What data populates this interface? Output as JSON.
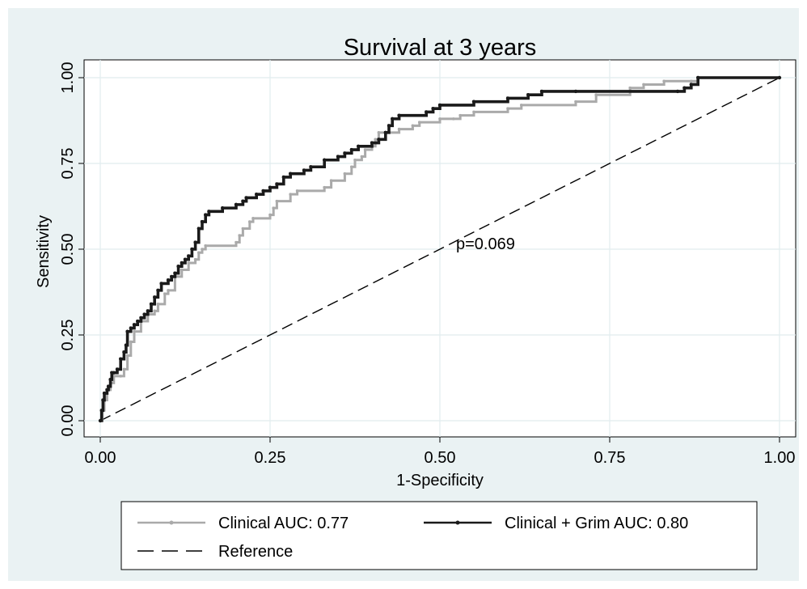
{
  "chart_data": {
    "type": "line",
    "title": "Survival at 3 years",
    "xlabel": "1-Specificity",
    "ylabel": "Sensitivity",
    "xlim": [
      0,
      1
    ],
    "ylim": [
      0,
      1
    ],
    "x_ticks": [
      "0.00",
      "0.25",
      "0.50",
      "0.75",
      "1.00"
    ],
    "y_ticks": [
      "0.00",
      "0.25",
      "0.50",
      "0.75",
      "1.00"
    ],
    "grid": true,
    "annotation": {
      "text": "p=0.069",
      "x": 0.5,
      "y": 0.49
    },
    "legend_position": "bottom",
    "colors": {
      "background": "#eaf2f3",
      "plot": "#ffffff",
      "grid": "#e1ecee",
      "clinical": "#aaaaaa",
      "grim": "#1a1a1a",
      "reference": "#000000"
    },
    "series": [
      {
        "name": "Clinical AUC: 0.77",
        "color": "#aaaaaa",
        "points": [
          [
            0,
            0
          ],
          [
            0.003,
            0.03
          ],
          [
            0.006,
            0.06
          ],
          [
            0.01,
            0.09
          ],
          [
            0.015,
            0.11
          ],
          [
            0.02,
            0.13
          ],
          [
            0.03,
            0.13
          ],
          [
            0.035,
            0.15
          ],
          [
            0.04,
            0.19
          ],
          [
            0.045,
            0.23
          ],
          [
            0.05,
            0.26
          ],
          [
            0.06,
            0.29
          ],
          [
            0.07,
            0.31
          ],
          [
            0.08,
            0.32
          ],
          [
            0.085,
            0.34
          ],
          [
            0.095,
            0.37
          ],
          [
            0.1,
            0.38
          ],
          [
            0.11,
            0.42
          ],
          [
            0.12,
            0.44
          ],
          [
            0.13,
            0.46
          ],
          [
            0.14,
            0.47
          ],
          [
            0.145,
            0.49
          ],
          [
            0.15,
            0.5
          ],
          [
            0.155,
            0.51
          ],
          [
            0.2,
            0.52
          ],
          [
            0.205,
            0.54
          ],
          [
            0.21,
            0.56
          ],
          [
            0.22,
            0.58
          ],
          [
            0.225,
            0.59
          ],
          [
            0.25,
            0.6
          ],
          [
            0.255,
            0.62
          ],
          [
            0.26,
            0.64
          ],
          [
            0.28,
            0.66
          ],
          [
            0.29,
            0.67
          ],
          [
            0.33,
            0.68
          ],
          [
            0.34,
            0.7
          ],
          [
            0.36,
            0.72
          ],
          [
            0.37,
            0.74
          ],
          [
            0.375,
            0.76
          ],
          [
            0.385,
            0.77
          ],
          [
            0.39,
            0.79
          ],
          [
            0.4,
            0.8
          ],
          [
            0.405,
            0.82
          ],
          [
            0.41,
            0.84
          ],
          [
            0.44,
            0.85
          ],
          [
            0.46,
            0.86
          ],
          [
            0.47,
            0.87
          ],
          [
            0.5,
            0.88
          ],
          [
            0.52,
            0.88
          ],
          [
            0.53,
            0.89
          ],
          [
            0.55,
            0.9
          ],
          [
            0.6,
            0.91
          ],
          [
            0.62,
            0.92
          ],
          [
            0.7,
            0.93
          ],
          [
            0.73,
            0.95
          ],
          [
            0.78,
            0.97
          ],
          [
            0.8,
            0.98
          ],
          [
            0.83,
            0.99
          ],
          [
            0.87,
            0.99
          ],
          [
            0.88,
            1.0
          ],
          [
            1.0,
            1.0
          ]
        ]
      },
      {
        "name": "Clinical + Grim AUC: 0.80",
        "color": "#1a1a1a",
        "points": [
          [
            0,
            0
          ],
          [
            0.002,
            0.03
          ],
          [
            0.004,
            0.06
          ],
          [
            0.006,
            0.08
          ],
          [
            0.01,
            0.09
          ],
          [
            0.012,
            0.1
          ],
          [
            0.015,
            0.12
          ],
          [
            0.017,
            0.14
          ],
          [
            0.02,
            0.14
          ],
          [
            0.025,
            0.15
          ],
          [
            0.03,
            0.18
          ],
          [
            0.035,
            0.2
          ],
          [
            0.038,
            0.22
          ],
          [
            0.04,
            0.26
          ],
          [
            0.045,
            0.27
          ],
          [
            0.05,
            0.28
          ],
          [
            0.055,
            0.29
          ],
          [
            0.06,
            0.3
          ],
          [
            0.065,
            0.31
          ],
          [
            0.07,
            0.32
          ],
          [
            0.075,
            0.34
          ],
          [
            0.08,
            0.36
          ],
          [
            0.085,
            0.38
          ],
          [
            0.09,
            0.4
          ],
          [
            0.1,
            0.41
          ],
          [
            0.105,
            0.42
          ],
          [
            0.11,
            0.43
          ],
          [
            0.115,
            0.45
          ],
          [
            0.12,
            0.46
          ],
          [
            0.125,
            0.47
          ],
          [
            0.13,
            0.48
          ],
          [
            0.135,
            0.5
          ],
          [
            0.14,
            0.52
          ],
          [
            0.145,
            0.56
          ],
          [
            0.15,
            0.58
          ],
          [
            0.155,
            0.6
          ],
          [
            0.16,
            0.61
          ],
          [
            0.18,
            0.62
          ],
          [
            0.2,
            0.63
          ],
          [
            0.21,
            0.64
          ],
          [
            0.215,
            0.65
          ],
          [
            0.23,
            0.66
          ],
          [
            0.24,
            0.67
          ],
          [
            0.25,
            0.68
          ],
          [
            0.26,
            0.69
          ],
          [
            0.27,
            0.71
          ],
          [
            0.28,
            0.72
          ],
          [
            0.3,
            0.73
          ],
          [
            0.31,
            0.74
          ],
          [
            0.33,
            0.76
          ],
          [
            0.35,
            0.77
          ],
          [
            0.36,
            0.78
          ],
          [
            0.37,
            0.79
          ],
          [
            0.38,
            0.8
          ],
          [
            0.4,
            0.81
          ],
          [
            0.41,
            0.82
          ],
          [
            0.42,
            0.84
          ],
          [
            0.425,
            0.86
          ],
          [
            0.43,
            0.88
          ],
          [
            0.44,
            0.89
          ],
          [
            0.48,
            0.9
          ],
          [
            0.49,
            0.91
          ],
          [
            0.5,
            0.92
          ],
          [
            0.55,
            0.93
          ],
          [
            0.6,
            0.94
          ],
          [
            0.63,
            0.95
          ],
          [
            0.65,
            0.96
          ],
          [
            0.7,
            0.96
          ],
          [
            0.85,
            0.96
          ],
          [
            0.86,
            0.97
          ],
          [
            0.87,
            0.98
          ],
          [
            0.88,
            1.0
          ],
          [
            1.0,
            1.0
          ]
        ]
      },
      {
        "name": "Reference",
        "color": "#000000",
        "dashed": true,
        "points": [
          [
            0,
            0
          ],
          [
            1,
            1
          ]
        ]
      }
    ]
  }
}
